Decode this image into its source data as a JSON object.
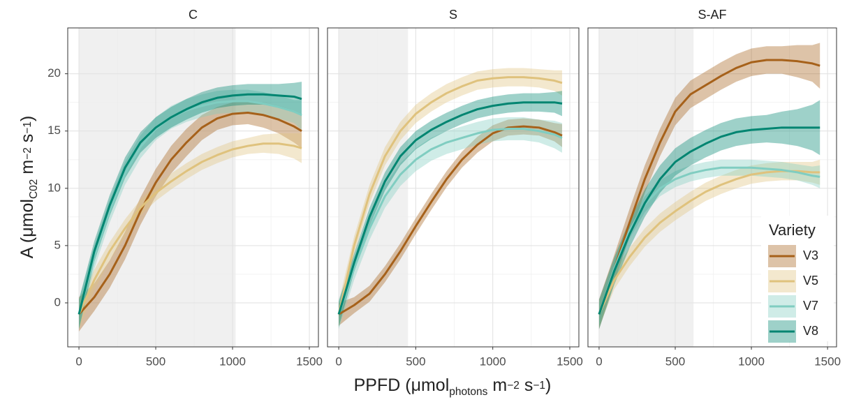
{
  "chart_data": [
    {
      "type": "line",
      "title": "C",
      "xlim": [
        -73,
        1559
      ],
      "ylim": [
        -3.84,
        24.0
      ],
      "xticks": [
        0,
        500,
        1000,
        1500
      ],
      "yticks": [
        0,
        5,
        10,
        15,
        20
      ],
      "grid": true,
      "shaded_range": [
        0,
        1020
      ],
      "x": [
        0,
        100,
        200,
        300,
        400,
        500,
        600,
        700,
        800,
        900,
        1000,
        1100,
        1200,
        1300,
        1400,
        1450
      ],
      "series": [
        {
          "name": "V3",
          "color": "#a6611a",
          "values": [
            -1.0,
            0.5,
            2.5,
            5,
            8,
            10.5,
            12.5,
            14,
            15.3,
            16.1,
            16.5,
            16.6,
            16.4,
            16,
            15.4,
            15.0
          ],
          "lower": [
            -2.5,
            -0.7,
            1.3,
            3.8,
            6.8,
            9.3,
            11.3,
            12.8,
            14.2,
            15.1,
            15.5,
            15.6,
            15.3,
            14.8,
            14.0,
            13.5
          ],
          "upper": [
            0.5,
            1.7,
            3.7,
            6.2,
            9.2,
            11.7,
            13.7,
            15.2,
            16.4,
            17.1,
            17.5,
            17.6,
            17.5,
            17.2,
            16.8,
            16.5
          ]
        },
        {
          "name": "V5",
          "color": "#dfc27d",
          "values": [
            -1,
            2,
            4.5,
            6.5,
            8.3,
            9.6,
            10.6,
            11.5,
            12.3,
            12.9,
            13.4,
            13.7,
            13.9,
            13.9,
            13.7,
            13.5
          ],
          "lower": [
            -2.3,
            1.1,
            3.7,
            5.7,
            7.6,
            8.9,
            9.9,
            10.8,
            11.6,
            12.2,
            12.7,
            13.0,
            13.1,
            13.0,
            12.6,
            12.2
          ],
          "upper": [
            0.3,
            2.9,
            5.3,
            7.3,
            9.0,
            10.3,
            11.3,
            12.2,
            13.0,
            13.6,
            14.1,
            14.4,
            14.7,
            14.8,
            14.8,
            14.8
          ]
        },
        {
          "name": "V7",
          "color": "#80cdc1",
          "values": [
            -1,
            4,
            8,
            11.3,
            13.6,
            15.2,
            16.2,
            16.8,
            17.2,
            17.5,
            17.6,
            17.6,
            17.4,
            17.1,
            16.7,
            16.4
          ],
          "lower": [
            -2.3,
            3,
            7,
            10.3,
            12.6,
            14.2,
            15.2,
            15.8,
            16.2,
            16.5,
            16.6,
            16.6,
            16.4,
            16.1,
            15.7,
            15.1
          ],
          "upper": [
            0.3,
            5,
            9,
            12.3,
            14.6,
            16.2,
            17.2,
            17.8,
            18.2,
            18.5,
            18.6,
            18.6,
            18.4,
            18.1,
            17.7,
            17.7
          ]
        },
        {
          "name": "V8",
          "color": "#018571",
          "values": [
            -1,
            4.5,
            8.5,
            11.8,
            14,
            15.3,
            16.2,
            16.9,
            17.5,
            17.9,
            18.1,
            18.2,
            18.2,
            18.1,
            18.0,
            17.8
          ],
          "lower": [
            -2.3,
            3.6,
            7.6,
            10.9,
            13.1,
            14.4,
            15.3,
            16.0,
            16.6,
            17.0,
            17.2,
            17.3,
            17.3,
            17.1,
            16.8,
            16.3
          ],
          "upper": [
            0.3,
            5.4,
            9.4,
            12.7,
            14.9,
            16.2,
            17.1,
            17.8,
            18.4,
            18.8,
            19.0,
            19.1,
            19.1,
            19.1,
            19.2,
            19.3
          ]
        }
      ]
    },
    {
      "type": "line",
      "title": "S",
      "xlim": [
        -73,
        1559
      ],
      "ylim": [
        -3.84,
        24.0
      ],
      "xticks": [
        0,
        500,
        1000,
        1500
      ],
      "yticks": [
        0,
        5,
        10,
        15,
        20
      ],
      "grid": true,
      "shaded_range": [
        0,
        450
      ],
      "x": [
        0,
        100,
        200,
        300,
        400,
        500,
        600,
        700,
        800,
        900,
        1000,
        1100,
        1200,
        1300,
        1400,
        1450
      ],
      "series": [
        {
          "name": "V3",
          "color": "#a6611a",
          "values": [
            -1,
            -0.2,
            0.8,
            2.5,
            4.5,
            6.7,
            8.8,
            10.8,
            12.5,
            13.8,
            14.8,
            15.3,
            15.4,
            15.3,
            14.9,
            14.6
          ],
          "lower": [
            -2.0,
            -0.9,
            0.1,
            1.8,
            3.8,
            6.0,
            8.1,
            10.1,
            11.8,
            13.1,
            14.1,
            14.6,
            14.7,
            14.6,
            14.1,
            13.6
          ],
          "upper": [
            0,
            0.5,
            1.5,
            3.2,
            5.2,
            7.4,
            9.5,
            11.5,
            13.2,
            14.5,
            15.5,
            16.0,
            16.1,
            16.0,
            15.7,
            15.6
          ]
        },
        {
          "name": "V5",
          "color": "#dfc27d",
          "values": [
            -1,
            5,
            9.5,
            12.8,
            15,
            16.5,
            17.5,
            18.3,
            18.9,
            19.4,
            19.6,
            19.7,
            19.7,
            19.6,
            19.4,
            19.2
          ],
          "lower": [
            -2.1,
            4.2,
            8.7,
            12.0,
            14.2,
            15.7,
            16.7,
            17.5,
            18.1,
            18.6,
            18.8,
            18.9,
            18.9,
            18.8,
            18.5,
            18.1
          ],
          "upper": [
            0.1,
            5.8,
            10.3,
            13.6,
            15.8,
            17.3,
            18.3,
            19.1,
            19.7,
            20.2,
            20.4,
            20.5,
            20.5,
            20.4,
            20.3,
            20.3
          ]
        },
        {
          "name": "V7",
          "color": "#80cdc1",
          "values": [
            -1,
            3,
            6.5,
            9.3,
            11.2,
            12.5,
            13.4,
            14.0,
            14.4,
            14.8,
            15.1,
            15.2,
            15.2,
            15.0,
            14.7,
            14.4
          ],
          "lower": [
            -2.3,
            2,
            5.5,
            8.3,
            10.2,
            11.5,
            12.4,
            13.0,
            13.4,
            13.8,
            14.1,
            14.2,
            14.2,
            14.0,
            13.5,
            13.1
          ],
          "upper": [
            0.3,
            4,
            7.5,
            10.3,
            12.2,
            13.5,
            14.4,
            15.0,
            15.4,
            15.8,
            16.1,
            16.2,
            16.2,
            16.0,
            15.9,
            15.7
          ]
        },
        {
          "name": "V8",
          "color": "#018571",
          "values": [
            -1,
            3.5,
            7.5,
            10.6,
            12.8,
            14.2,
            15.1,
            15.8,
            16.4,
            16.9,
            17.2,
            17.4,
            17.5,
            17.5,
            17.5,
            17.4
          ],
          "lower": [
            -2.1,
            2.7,
            6.7,
            9.8,
            12.0,
            13.4,
            14.3,
            15.0,
            15.6,
            16.1,
            16.4,
            16.6,
            16.7,
            16.7,
            16.6,
            16.3
          ],
          "upper": [
            0.1,
            4.3,
            8.3,
            11.4,
            13.6,
            15.0,
            15.9,
            16.6,
            17.2,
            17.7,
            18.0,
            18.2,
            18.3,
            18.3,
            18.4,
            18.5
          ]
        }
      ]
    },
    {
      "type": "line",
      "title": "S-AF",
      "xlim": [
        -73,
        1559
      ],
      "ylim": [
        -3.84,
        24.0
      ],
      "xticks": [
        0,
        500,
        1000,
        1500
      ],
      "yticks": [
        0,
        5,
        10,
        15,
        20
      ],
      "grid": true,
      "shaded_range": [
        0,
        620
      ],
      "x": [
        0,
        100,
        200,
        300,
        400,
        500,
        600,
        700,
        800,
        900,
        1000,
        1100,
        1200,
        1300,
        1400,
        1450
      ],
      "series": [
        {
          "name": "V3",
          "color": "#a6611a",
          "values": [
            -1,
            3,
            7,
            10.8,
            14,
            16.7,
            18.2,
            19.0,
            19.8,
            20.5,
            21.0,
            21.2,
            21.2,
            21.1,
            20.9,
            20.7
          ],
          "lower": [
            -2.3,
            1.8,
            5.8,
            9.6,
            12.8,
            15.5,
            17.0,
            17.8,
            18.6,
            19.3,
            19.8,
            20.0,
            20.0,
            19.7,
            19.3,
            18.7
          ],
          "upper": [
            0.3,
            4.2,
            8.2,
            12.0,
            15.2,
            17.9,
            19.4,
            20.2,
            21.0,
            21.7,
            22.2,
            22.4,
            22.4,
            22.5,
            22.5,
            22.7
          ]
        },
        {
          "name": "V5",
          "color": "#dfc27d",
          "values": [
            -1,
            2,
            4,
            5.7,
            7.0,
            8.0,
            8.9,
            9.7,
            10.3,
            10.8,
            11.2,
            11.4,
            11.5,
            11.5,
            11.4,
            11.4
          ],
          "lower": [
            -2.1,
            1.2,
            3.2,
            4.9,
            6.2,
            7.2,
            8.1,
            8.9,
            9.5,
            10.0,
            10.4,
            10.6,
            10.7,
            10.7,
            10.5,
            10.3
          ],
          "upper": [
            0.1,
            2.8,
            4.8,
            6.5,
            7.8,
            8.8,
            9.7,
            10.5,
            11.1,
            11.6,
            12.0,
            12.2,
            12.3,
            12.3,
            12.3,
            12.5
          ]
        },
        {
          "name": "V7",
          "color": "#80cdc1",
          "values": [
            -1,
            3,
            6.3,
            8.6,
            10,
            10.8,
            11.3,
            11.6,
            11.8,
            11.8,
            11.8,
            11.7,
            11.6,
            11.4,
            11.1,
            11.0
          ],
          "lower": [
            -2,
            2.3,
            5.6,
            7.9,
            9.3,
            10.1,
            10.6,
            10.9,
            11.1,
            11.1,
            11.1,
            11.0,
            10.9,
            10.7,
            10.3,
            10.0
          ],
          "upper": [
            0,
            3.7,
            7.0,
            9.3,
            10.7,
            11.5,
            12.0,
            12.3,
            12.5,
            12.5,
            12.5,
            12.4,
            12.3,
            12.1,
            11.9,
            12.0
          ]
        },
        {
          "name": "V8",
          "color": "#018571",
          "values": [
            -1,
            2.8,
            6,
            8.7,
            10.8,
            12.3,
            13.2,
            13.9,
            14.5,
            14.9,
            15.1,
            15.2,
            15.3,
            15.3,
            15.3,
            15.3
          ],
          "lower": [
            -2.3,
            1.6,
            4.8,
            7.5,
            9.6,
            11.1,
            12.0,
            12.7,
            13.3,
            13.7,
            13.9,
            14.0,
            13.9,
            13.7,
            13.3,
            12.9
          ],
          "upper": [
            0.3,
            4.0,
            7.2,
            9.9,
            12.0,
            13.5,
            14.4,
            15.1,
            15.7,
            16.1,
            16.3,
            16.4,
            16.7,
            16.9,
            17.3,
            17.7
          ]
        }
      ]
    }
  ],
  "x_label": [
    {
      "text": "PPFD (μmol"
    },
    {
      "text": "photons",
      "shift": "sub"
    },
    {
      "text": " m"
    },
    {
      "text": "−2",
      "shift": "sup"
    },
    {
      "text": " s"
    },
    {
      "text": "−1",
      "shift": "sup"
    },
    {
      "text": ")"
    }
  ],
  "y_label": [
    {
      "text": "A (μmol"
    },
    {
      "text": "C02",
      "shift": "sub"
    },
    {
      "text": " m"
    },
    {
      "text": "−2",
      "shift": "sup"
    },
    {
      "text": " s"
    },
    {
      "text": "−1",
      "shift": "sup"
    },
    {
      "text": ")"
    }
  ],
  "legend": {
    "title": "Variety",
    "position": "bottom-right"
  }
}
